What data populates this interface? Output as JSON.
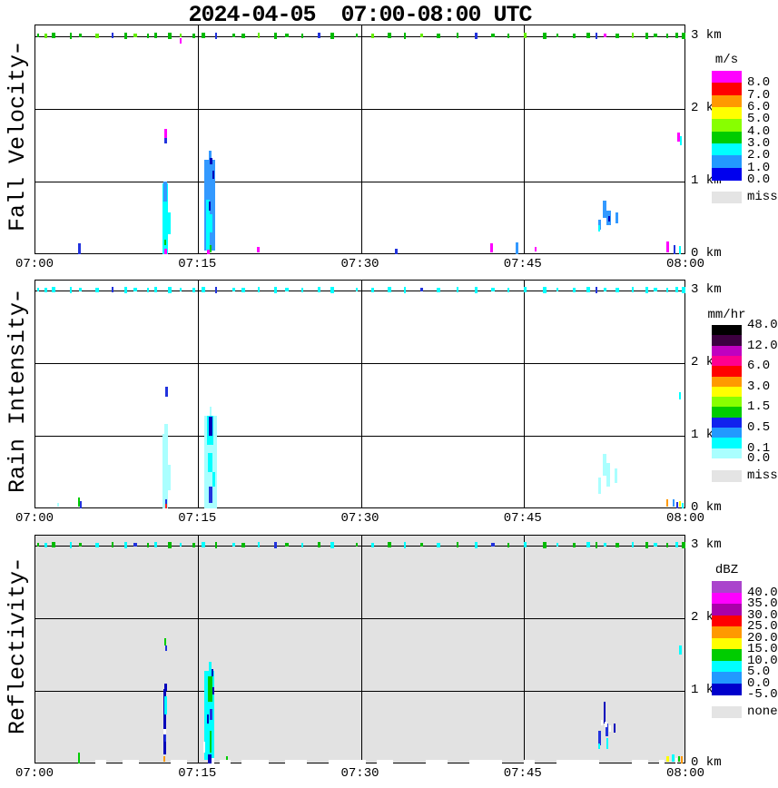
{
  "title": "2024-04-05  07:00-08:00 UTC",
  "chart_data": {
    "type": "heatmap",
    "title": "2024-04-05  07:00-08:00 UTC",
    "x_axis": {
      "ticks": [
        "07:00",
        "07:15",
        "07:30",
        "07:45",
        "08:00"
      ],
      "range_minutes": [
        0,
        60
      ],
      "grid": "on at 15-min intervals"
    },
    "y_axis": {
      "ticks": [
        "0 km",
        "1 km",
        "2 km",
        "3 km"
      ],
      "range_km": [
        0,
        3
      ],
      "grid": "on at 1-km intervals"
    },
    "color_key": {
      "g": "#00BB00",
      "G": "#00CC00",
      "c": "#66EE00",
      "b": "#2233DD",
      "k": "#0000BB",
      "m": "#FF00FF",
      "y": "#00FFFF",
      "p": "#AAFFFF",
      "d": "#3399FF",
      "r": "#FF2222",
      "o": "#FF9900",
      "Y": "#FFFF00",
      "w": "#FFFFFF"
    },
    "speckle_t": [
      0.2,
      0.8,
      1.5,
      3.2,
      4.0,
      5.5,
      7.0,
      8.2,
      9.0,
      10.3,
      11.0,
      12.2,
      13.3,
      14.5,
      15.3,
      16.6,
      18.2,
      19.0,
      20.5,
      22.0,
      23.0,
      24.5,
      26.0,
      27.2,
      29.5,
      31.0,
      32.5,
      34.0,
      35.5,
      37.0,
      38.8,
      40.5,
      42.0,
      43.5,
      45.0,
      46.8,
      48.0,
      49.5,
      50.8,
      51.6,
      52.4,
      53.5,
      55.0,
      56.2,
      57.0,
      58.2,
      59.0,
      59.6
    ],
    "panels": [
      {
        "label": "Fall Velocity",
        "plot_bg": "#FFFFFF",
        "speckle_colors": "gcgggcbgcgggcggbggcgggbggcggcggbggcggggbmgcggggg",
        "colorbar": {
          "title": "m/s",
          "bands": [
            {
              "color": "#FF00FF",
              "label": "8.0"
            },
            {
              "color": "#FF0000",
              "label": "7.0"
            },
            {
              "color": "#FF9900",
              "label": "6.0"
            },
            {
              "color": "#FFFF00",
              "label": "5.0"
            },
            {
              "color": "#88FF00",
              "label": "4.0"
            },
            {
              "color": "#00CC00",
              "label": "3.0"
            },
            {
              "color": "#00FFFF",
              "label": "2.0"
            },
            {
              "color": "#2299FF",
              "label": "1.0"
            },
            {
              "color": "#0000EE",
              "label": "0.0"
            }
          ],
          "missing_label": "miss",
          "missing_color": "#E4E4E4"
        },
        "cells": [
          [
            11.75,
            12.2,
            0,
            0.98,
            "y"
          ],
          [
            11.8,
            12.45,
            0.28,
            0.58,
            "y"
          ],
          [
            11.8,
            12.1,
            0.72,
            1.0,
            "d"
          ],
          [
            11.9,
            12.15,
            0,
            0.08,
            "m"
          ],
          [
            11.9,
            12.05,
            0.12,
            0.2,
            "G"
          ],
          [
            11.85,
            12.1,
            1.52,
            1.6,
            "b"
          ],
          [
            11.85,
            12.15,
            1.6,
            1.73,
            "m"
          ],
          [
            15.6,
            16.6,
            0.05,
            1.3,
            "d"
          ],
          [
            16.0,
            16.25,
            1.3,
            1.43,
            "d"
          ],
          [
            15.7,
            16.1,
            0.05,
            0.75,
            "y"
          ],
          [
            15.95,
            16.35,
            0.3,
            0.55,
            "y"
          ],
          [
            16.1,
            16.3,
            1.24,
            1.33,
            "k"
          ],
          [
            16.3,
            16.45,
            1.04,
            1.15,
            "k"
          ],
          [
            15.95,
            16.1,
            0.6,
            0.72,
            "k"
          ],
          [
            15.8,
            16.05,
            0,
            0.06,
            "m"
          ],
          [
            16.05,
            16.2,
            0.02,
            0.12,
            "G"
          ],
          [
            52.3,
            52.65,
            0.5,
            0.74,
            "d"
          ],
          [
            52.65,
            53.05,
            0.4,
            0.6,
            "d"
          ],
          [
            52.8,
            53.0,
            0.45,
            0.53,
            "k"
          ],
          [
            51.9,
            52.15,
            0.34,
            0.47,
            "d"
          ],
          [
            51.85,
            52.0,
            0.31,
            0.4,
            "y"
          ],
          [
            53.45,
            53.7,
            0.43,
            0.58,
            "d"
          ],
          [
            3.95,
            4.15,
            0,
            0.15,
            "b"
          ],
          [
            20.45,
            20.65,
            0.03,
            0.1,
            "m"
          ],
          [
            33.15,
            33.35,
            0,
            0.08,
            "b"
          ],
          [
            41.9,
            42.15,
            0.02,
            0.15,
            "m"
          ],
          [
            44.3,
            44.5,
            0,
            0.16,
            "d"
          ],
          [
            46.0,
            46.2,
            0.04,
            0.1,
            "m"
          ],
          [
            58.2,
            58.4,
            0.02,
            0.18,
            "m"
          ],
          [
            58.8,
            59.0,
            0,
            0.12,
            "b"
          ],
          [
            59.3,
            59.5,
            0,
            0.11,
            "y"
          ],
          [
            59.15,
            59.4,
            1.55,
            1.68,
            "m"
          ],
          [
            59.4,
            59.6,
            1.5,
            1.62,
            "y"
          ],
          [
            13.3,
            13.45,
            2.9,
            2.97,
            "m"
          ]
        ]
      },
      {
        "label": "Rain Intensity",
        "plot_bg": "#FFFFFF",
        "speckle_colors": "yyyyyybyyyyyyyybyyyyyyyyyyyybyyyyyyyyyybyyyyyyyy",
        "colorbar": {
          "title": "mm/hr",
          "bands": [
            {
              "color": "#000000",
              "label": "48.0",
              "label_at": "top"
            },
            {
              "color": "#3C0040",
              "label": "12.0"
            },
            {
              "color": "#C000C0"
            },
            {
              "color": "#FF0090",
              "label": "6.0"
            },
            {
              "color": "#FF0000"
            },
            {
              "color": "#FF9900",
              "label": "3.0"
            },
            {
              "color": "#FFFF00"
            },
            {
              "color": "#88FF00",
              "label": "1.5"
            },
            {
              "color": "#00CC00"
            },
            {
              "color": "#1122EE",
              "label": "0.5"
            },
            {
              "color": "#2299FF"
            },
            {
              "color": "#00FFFF",
              "label": "0.1"
            },
            {
              "color": "#AAFFFF",
              "label": "0.0"
            }
          ],
          "missing_label": "miss",
          "missing_color": "#E4E4E4"
        },
        "cells": [
          [
            11.75,
            12.25,
            0,
            1.02,
            "p"
          ],
          [
            11.8,
            12.45,
            0.25,
            0.6,
            "p"
          ],
          [
            11.9,
            12.2,
            0.88,
            1.16,
            "p"
          ],
          [
            11.95,
            12.15,
            0.06,
            0.12,
            "b"
          ],
          [
            11.95,
            12.15,
            0,
            0.06,
            "r"
          ],
          [
            11.95,
            12.2,
            1.54,
            1.68,
            "b"
          ],
          [
            15.55,
            16.7,
            0,
            1.28,
            "p"
          ],
          [
            16.05,
            16.25,
            1.28,
            1.4,
            "p"
          ],
          [
            15.85,
            16.4,
            0.88,
            1.28,
            "y"
          ],
          [
            16.0,
            16.35,
            1.0,
            1.26,
            "k"
          ],
          [
            15.9,
            16.3,
            0.5,
            0.76,
            "y"
          ],
          [
            16.0,
            16.3,
            0.08,
            0.3,
            "b"
          ],
          [
            16.35,
            16.55,
            0.3,
            0.5,
            "y"
          ],
          [
            52.3,
            52.6,
            0.45,
            0.75,
            "p"
          ],
          [
            52.6,
            53.0,
            0.3,
            0.62,
            "p"
          ],
          [
            51.9,
            52.15,
            0.2,
            0.42,
            "p"
          ],
          [
            53.4,
            53.65,
            0.35,
            0.55,
            "p"
          ],
          [
            2.0,
            2.15,
            0.02,
            0.08,
            "p"
          ],
          [
            3.95,
            4.08,
            0.02,
            0.15,
            "G"
          ],
          [
            4.08,
            4.2,
            0,
            0.1,
            "b"
          ],
          [
            58.15,
            58.35,
            0.02,
            0.12,
            "o"
          ],
          [
            58.75,
            58.95,
            0.02,
            0.12,
            "d"
          ],
          [
            59.05,
            59.2,
            0,
            0.09,
            "b"
          ],
          [
            59.35,
            59.5,
            0.02,
            0.1,
            "Y"
          ],
          [
            59.55,
            59.7,
            0,
            0.08,
            "y"
          ],
          [
            59.3,
            59.5,
            1.5,
            1.6,
            "y"
          ]
        ]
      },
      {
        "label": "Reflectivity",
        "plot_bg": "#E2E2E2",
        "speckle_colors": "gygygygybgygygygygybgygygygygygybgygygygygygygyg",
        "colorbar": {
          "title": "dBZ",
          "bands": [
            {
              "color": "#AA44CC",
              "label": "40.0"
            },
            {
              "color": "#FF00FF",
              "label": "35.0"
            },
            {
              "color": "#AA00AA",
              "label": "30.0"
            },
            {
              "color": "#FF0000",
              "label": "25.0"
            },
            {
              "color": "#FF9900",
              "label": "20.0"
            },
            {
              "color": "#FFFF00",
              "label": "15.0"
            },
            {
              "color": "#00CC00",
              "label": "10.0"
            },
            {
              "color": "#00FFFF",
              "label": "5.0"
            },
            {
              "color": "#2299FF",
              "label": "0.0"
            },
            {
              "color": "#0000CC",
              "label": "-5.0"
            }
          ],
          "missing_label": "none",
          "missing_color": "#E4E4E4"
        },
        "cells": [
          [
            11.8,
            12.05,
            0.12,
            1.02,
            "k"
          ],
          [
            11.85,
            12.1,
            0.68,
            0.92,
            "y"
          ],
          [
            11.8,
            12.05,
            0.4,
            0.48,
            "w"
          ],
          [
            11.8,
            12.0,
            0.02,
            0.1,
            "o"
          ],
          [
            11.85,
            12.05,
            0.3,
            0.4,
            "b"
          ],
          [
            11.9,
            12.1,
            1.0,
            1.1,
            "k"
          ],
          [
            11.9,
            12.05,
            1.63,
            1.73,
            "G"
          ],
          [
            11.95,
            12.1,
            1.55,
            1.63,
            "b"
          ],
          [
            15.6,
            16.5,
            0.05,
            1.28,
            "y"
          ],
          [
            16.0,
            16.2,
            1.28,
            1.4,
            "y"
          ],
          [
            15.9,
            16.3,
            0.85,
            1.2,
            "G"
          ],
          [
            16.05,
            16.25,
            0.15,
            0.45,
            "G"
          ],
          [
            16.25,
            16.4,
            1.2,
            1.3,
            "k"
          ],
          [
            16.3,
            16.45,
            0.95,
            1.05,
            "k"
          ],
          [
            15.85,
            16.0,
            0.55,
            0.68,
            "k"
          ],
          [
            16.1,
            16.3,
            0.6,
            0.75,
            "b"
          ],
          [
            15.5,
            15.68,
            0.15,
            0.3,
            "w"
          ],
          [
            16.2,
            16.45,
            0,
            0.08,
            "w"
          ],
          [
            15.9,
            16.2,
            0,
            0.13,
            "k"
          ],
          [
            52.35,
            52.55,
            0.55,
            0.85,
            "k"
          ],
          [
            52.55,
            52.8,
            0.38,
            0.55,
            "b"
          ],
          [
            52.5,
            52.68,
            0.5,
            0.58,
            "w"
          ],
          [
            51.9,
            52.1,
            0.25,
            0.45,
            "b"
          ],
          [
            51.9,
            52.05,
            0.2,
            0.28,
            "y"
          ],
          [
            53.3,
            53.5,
            0.42,
            0.55,
            "k"
          ],
          [
            52.15,
            52.3,
            0.52,
            0.6,
            "w"
          ],
          [
            52.88,
            53.03,
            0.44,
            0.52,
            "w"
          ],
          [
            52.6,
            52.75,
            0.2,
            0.35,
            "y"
          ],
          [
            3.95,
            4.1,
            0,
            0.15,
            "G"
          ],
          [
            17.6,
            17.75,
            0,
            0.1,
            "G"
          ],
          [
            5.5,
            6.5,
            0,
            0.05,
            "w"
          ],
          [
            8.0,
            9.5,
            0,
            0.05,
            "w"
          ],
          [
            12.5,
            14.0,
            0,
            0.05,
            "w"
          ],
          [
            17.0,
            18.0,
            0,
            0.05,
            "w"
          ],
          [
            19.0,
            21.5,
            0,
            0.05,
            "w"
          ],
          [
            23.0,
            25.0,
            0,
            0.05,
            "w"
          ],
          [
            27.0,
            30.5,
            0,
            0.05,
            "w"
          ],
          [
            31.5,
            33.0,
            0,
            0.05,
            "w"
          ],
          [
            36.0,
            38.0,
            0,
            0.05,
            "w"
          ],
          [
            40.0,
            43.0,
            0,
            0.05,
            "w"
          ],
          [
            45.0,
            46.0,
            0,
            0.05,
            "w"
          ],
          [
            48.0,
            52.0,
            0,
            0.05,
            "w"
          ],
          [
            55.0,
            56.5,
            0,
            0.05,
            "w"
          ],
          [
            57.5,
            58.0,
            0,
            0.05,
            "w"
          ],
          [
            58.2,
            58.38,
            0.02,
            0.1,
            "Y"
          ],
          [
            58.7,
            58.9,
            0.02,
            0.12,
            "y"
          ],
          [
            59.0,
            59.15,
            0,
            0.08,
            "w"
          ],
          [
            59.25,
            59.4,
            0.02,
            0.1,
            "G"
          ],
          [
            59.5,
            59.68,
            0,
            0.1,
            "o"
          ],
          [
            59.35,
            59.55,
            1.5,
            1.62,
            "y"
          ]
        ]
      }
    ]
  }
}
